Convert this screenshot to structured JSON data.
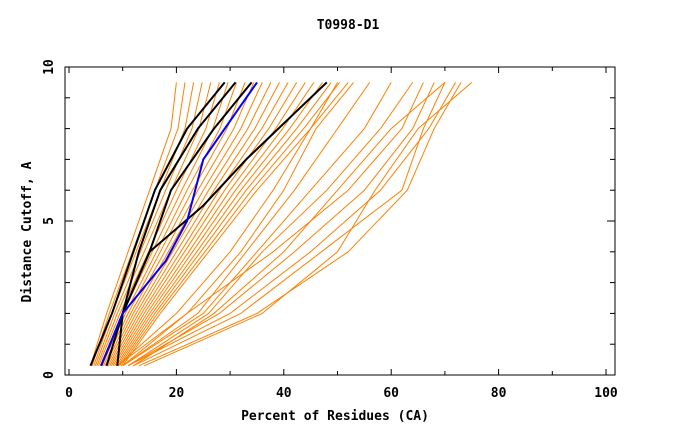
{
  "chart_data": {
    "type": "line",
    "title": "T0998-D1",
    "xlabel": "Percent of Residues (CA)",
    "ylabel": "Distance Cutoff, A",
    "xlim": [
      0,
      100
    ],
    "ylim": [
      0,
      10
    ],
    "x_ticks": [
      "0",
      "20",
      "40",
      "60",
      "80",
      "100"
    ],
    "y_ticks": [
      "0",
      "5",
      "10"
    ],
    "grid": false,
    "legend": "none",
    "colors": {
      "other_models": "#ff8000",
      "highlighted_models": "#000000",
      "reference_model": "#0000ff"
    },
    "y_levels": [
      0.3,
      2,
      4,
      6,
      8,
      9.5
    ],
    "other_models_x": [
      [
        4,
        7,
        11,
        15,
        19,
        20
      ],
      [
        4.3,
        7.5,
        11.8,
        16,
        20.3,
        21.6
      ],
      [
        4.6,
        8,
        12.5,
        17,
        21.6,
        23.2
      ],
      [
        4.9,
        8.5,
        13.3,
        18,
        22.9,
        24.8
      ],
      [
        5.2,
        9,
        14,
        19,
        24.2,
        26.4
      ],
      [
        5.5,
        9.5,
        14.8,
        20,
        25.5,
        28
      ],
      [
        5.8,
        10,
        15.5,
        21,
        26.8,
        29.6
      ],
      [
        6.1,
        10.5,
        16.3,
        22,
        28.1,
        31.2
      ],
      [
        6.4,
        11,
        17,
        23,
        29.4,
        32.8
      ],
      [
        6.7,
        11.5,
        17.8,
        24,
        30.7,
        34.4
      ],
      [
        7,
        12,
        18.5,
        25,
        32,
        36
      ],
      [
        7.3,
        12.5,
        19.3,
        26,
        33.3,
        37.6
      ],
      [
        7.6,
        13,
        20,
        27,
        34.6,
        39.2
      ],
      [
        7.9,
        13.5,
        20.8,
        28,
        35.9,
        40.8
      ],
      [
        8.2,
        14,
        21.5,
        29,
        37.2,
        42.4
      ],
      [
        8.5,
        14.5,
        22.3,
        30,
        38.5,
        44
      ],
      [
        8.8,
        15,
        23,
        31,
        39.8,
        45.6
      ],
      [
        9.1,
        15.5,
        23.8,
        32,
        41.1,
        47.2
      ],
      [
        9.4,
        16,
        24.5,
        33,
        42.4,
        48.8
      ],
      [
        9.7,
        16.5,
        25.3,
        34,
        43.7,
        50.4
      ],
      [
        10,
        17,
        26,
        35,
        45,
        52
      ],
      [
        9,
        20,
        30,
        38,
        45,
        50
      ],
      [
        9,
        22,
        32,
        40,
        46,
        53
      ],
      [
        10,
        24,
        33,
        42,
        50,
        56
      ],
      [
        10,
        25,
        35,
        45,
        55,
        60
      ],
      [
        10,
        22,
        38,
        52,
        62,
        66
      ],
      [
        11,
        28,
        42,
        55,
        64,
        68
      ],
      [
        11,
        30,
        45,
        58,
        67,
        72
      ],
      [
        12,
        27,
        40,
        50,
        60,
        70
      ],
      [
        12,
        32,
        47,
        62,
        66,
        70
      ],
      [
        13,
        35,
        52,
        63,
        68,
        73
      ],
      [
        14,
        36,
        50,
        57,
        65,
        75
      ],
      [
        11,
        26,
        36,
        48,
        58,
        64
      ]
    ],
    "highlighted_models": [
      [
        [
          4,
          0.3
        ],
        [
          8,
          2
        ],
        [
          12,
          4
        ],
        [
          16,
          6
        ],
        [
          22,
          8
        ],
        [
          29,
          9.5
        ]
      ],
      [
        [
          6,
          0.3
        ],
        [
          10,
          2
        ],
        [
          13,
          4
        ],
        [
          17,
          6
        ],
        [
          24,
          8
        ],
        [
          31,
          9.5
        ]
      ],
      [
        [
          9,
          0.3
        ],
        [
          10,
          2
        ],
        [
          15,
          4
        ],
        [
          19,
          6
        ],
        [
          27,
          8
        ],
        [
          34,
          9.5
        ]
      ],
      [
        [
          7,
          0.3
        ],
        [
          10,
          2
        ],
        [
          15,
          4
        ],
        [
          25,
          5.5
        ],
        [
          33,
          7
        ],
        [
          42,
          8.5
        ],
        [
          48,
          9.5
        ]
      ]
    ],
    "reference_model": [
      [
        6,
        0.3
      ],
      [
        10,
        2
      ],
      [
        18,
        3.7
      ],
      [
        22,
        5
      ],
      [
        25,
        7
      ],
      [
        31,
        8.5
      ],
      [
        35,
        9.5
      ]
    ]
  }
}
